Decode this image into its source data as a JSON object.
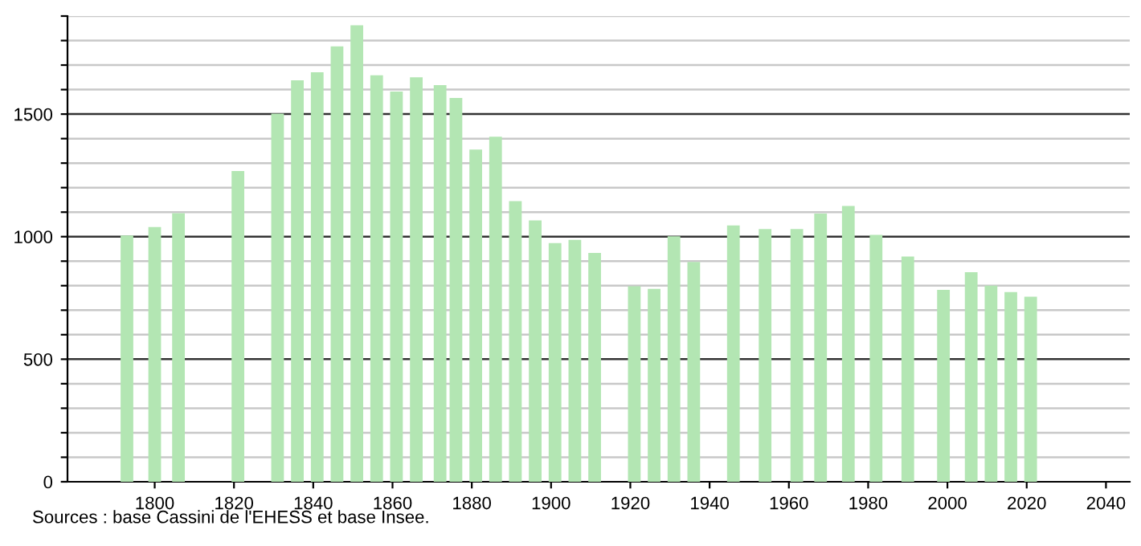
{
  "chart_data": {
    "type": "bar",
    "x": [
      1793,
      1800,
      1806,
      1821,
      1831,
      1836,
      1841,
      1846,
      1851,
      1856,
      1861,
      1866,
      1872,
      1876,
      1881,
      1886,
      1891,
      1896,
      1901,
      1906,
      1911,
      1921,
      1926,
      1931,
      1936,
      1946,
      1954,
      1962,
      1968,
      1975,
      1982,
      1990,
      1999,
      2006,
      2011,
      2016,
      2021
    ],
    "values": [
      1005,
      1039,
      1096,
      1268,
      1502,
      1638,
      1671,
      1776,
      1862,
      1658,
      1592,
      1650,
      1618,
      1566,
      1355,
      1408,
      1145,
      1066,
      974,
      987,
      934,
      798,
      787,
      1002,
      897,
      1046,
      1031,
      1031,
      1094,
      1125,
      1007,
      919,
      783,
      855,
      800,
      774,
      755
    ],
    "color": "#b3e6b3",
    "xlim": [
      1778,
      2046
    ],
    "xticks": [
      1800,
      1820,
      1840,
      1860,
      1880,
      1900,
      1920,
      1940,
      1960,
      1980,
      2000,
      2020,
      2040
    ],
    "ylim": [
      0,
      1900
    ],
    "yticks": [
      0,
      {
        "value": 100,
        "label": null
      },
      {
        "value": 200,
        "label": null
      },
      {
        "value": 300,
        "label": null
      },
      {
        "value": 400,
        "label": null
      },
      500,
      {
        "value": 600,
        "label": null
      },
      {
        "value": 700,
        "label": null
      },
      {
        "value": 800,
        "label": null
      },
      {
        "value": 900,
        "label": null
      },
      1000,
      {
        "value": 1100,
        "label": null
      },
      {
        "value": 1200,
        "label": null
      },
      {
        "value": 1300,
        "label": null
      },
      {
        "value": 1400,
        "label": null
      },
      1500,
      {
        "value": 1600,
        "label": null
      },
      {
        "value": 1700,
        "label": null
      },
      {
        "value": 1800,
        "label": null
      },
      {
        "value": 1900,
        "label": null
      }
    ],
    "grid": "y",
    "annotations": [
      "Sources : base Cassini de l'EHESS et base Insee."
    ]
  }
}
